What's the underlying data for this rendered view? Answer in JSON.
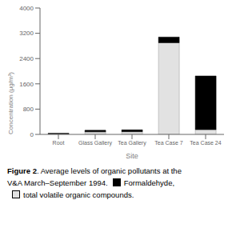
{
  "chart_data": {
    "type": "bar",
    "title": "Figure 2",
    "subtitle": ". Average levels of organic pollutants at the\nV&A March–September 1994.",
    "categories": [
      "Root",
      "Glass Gallery",
      "Tea Gallery",
      "Tea Case 7",
      "Tea Case 24"
    ],
    "series": [
      {
        "name": "total volatile organic compounds.",
        "color": "#e2e2e2",
        "values": [
          10,
          80,
          85,
          2900,
          150
        ]
      },
      {
        "name": "Formaldehyde,",
        "color": "#000000",
        "values": [
          25,
          50,
          60,
          180,
          1700
        ]
      }
    ],
    "stacked": true,
    "xlabel": "Site",
    "ylabel": "Concentration (μg/m³)",
    "ylim": [
      0,
      4000
    ],
    "yticks": [
      0,
      800,
      1600,
      2400,
      3200,
      4000
    ],
    "grid": false,
    "legend": "bottom"
  }
}
